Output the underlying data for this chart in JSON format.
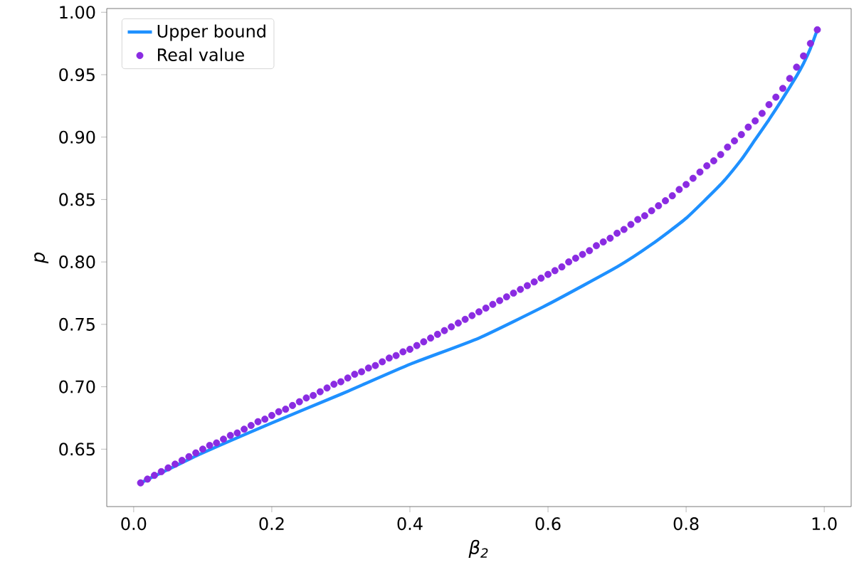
{
  "chart_data": {
    "type": "scatter",
    "xlabel": "β$_{2}$",
    "ylabel": "p",
    "xlim": [
      -0.039,
      1.039
    ],
    "ylim": [
      0.604,
      1.003
    ],
    "xticks": [
      {
        "value": 0,
        "label": "0.0"
      },
      0.2,
      0.4,
      0.6,
      0.8,
      {
        "value": 1,
        "label": "1.0"
      }
    ],
    "yticks": [
      0.65,
      {
        "value": 0.7,
        "label": "0.70"
      },
      0.75,
      {
        "value": 0.8,
        "label": "0.80"
      },
      0.85,
      {
        "value": 0.9,
        "label": "0.90"
      },
      0.95,
      {
        "value": 1,
        "label": "1.00"
      }
    ],
    "legend": "top left",
    "grid": false,
    "series": [
      {
        "name": "Upper bound",
        "type": "line",
        "color": "#1e90ff",
        "marker": "none",
        "line_style": "solid",
        "x": [
          0.01,
          0.1,
          0.2,
          0.3,
          0.4,
          0.5,
          0.6,
          0.7,
          0.75,
          0.8,
          0.85,
          0.88,
          0.9,
          0.92,
          0.94,
          0.96,
          0.97,
          0.98,
          0.99
        ],
        "values": [
          0.623,
          0.647,
          0.671,
          0.694,
          0.718,
          0.739,
          0.766,
          0.796,
          0.814,
          0.835,
          0.862,
          0.882,
          0.898,
          0.914,
          0.931,
          0.949,
          0.959,
          0.971,
          0.986
        ]
      },
      {
        "name": "Real value",
        "color": "#8a2be2",
        "marker": "circle",
        "x": [
          0.01,
          0.02,
          0.03,
          0.04,
          0.05,
          0.06,
          0.07,
          0.08,
          0.09,
          0.1,
          0.11,
          0.12,
          0.13,
          0.14,
          0.15,
          0.16,
          0.17,
          0.18,
          0.19,
          0.2,
          0.21,
          0.22,
          0.23,
          0.24,
          0.25,
          0.26,
          0.27,
          0.28,
          0.29,
          0.3,
          0.31,
          0.32,
          0.33,
          0.34,
          0.35,
          0.36,
          0.37,
          0.38,
          0.39,
          0.4,
          0.41,
          0.42,
          0.43,
          0.44,
          0.45,
          0.46,
          0.47,
          0.48,
          0.49,
          0.5,
          0.51,
          0.52,
          0.53,
          0.54,
          0.55,
          0.56,
          0.57,
          0.58,
          0.59,
          0.6,
          0.61,
          0.62,
          0.63,
          0.64,
          0.65,
          0.66,
          0.67,
          0.68,
          0.69,
          0.7,
          0.71,
          0.72,
          0.73,
          0.74,
          0.75,
          0.76,
          0.77,
          0.78,
          0.79,
          0.8,
          0.81,
          0.82,
          0.83,
          0.84,
          0.85,
          0.86,
          0.87,
          0.88,
          0.89,
          0.9,
          0.91,
          0.92,
          0.93,
          0.94,
          0.95,
          0.96,
          0.97,
          0.98,
          0.99
        ],
        "values": [
          0.623,
          0.626,
          0.629,
          0.632,
          0.635,
          0.638,
          0.641,
          0.644,
          0.647,
          0.65,
          0.653,
          0.655,
          0.658,
          0.661,
          0.663,
          0.666,
          0.669,
          0.672,
          0.674,
          0.677,
          0.68,
          0.682,
          0.685,
          0.688,
          0.691,
          0.693,
          0.696,
          0.699,
          0.702,
          0.704,
          0.707,
          0.71,
          0.712,
          0.715,
          0.717,
          0.72,
          0.723,
          0.725,
          0.728,
          0.73,
          0.733,
          0.736,
          0.739,
          0.742,
          0.745,
          0.748,
          0.751,
          0.754,
          0.757,
          0.76,
          0.763,
          0.766,
          0.769,
          0.772,
          0.775,
          0.778,
          0.781,
          0.784,
          0.787,
          0.79,
          0.793,
          0.796,
          0.8,
          0.803,
          0.806,
          0.809,
          0.813,
          0.816,
          0.819,
          0.823,
          0.826,
          0.83,
          0.834,
          0.837,
          0.841,
          0.845,
          0.849,
          0.853,
          0.858,
          0.862,
          0.867,
          0.872,
          0.877,
          0.881,
          0.886,
          0.892,
          0.897,
          0.902,
          0.908,
          0.913,
          0.919,
          0.926,
          0.932,
          0.939,
          0.947,
          0.956,
          0.965,
          0.975,
          0.986
        ]
      }
    ]
  }
}
